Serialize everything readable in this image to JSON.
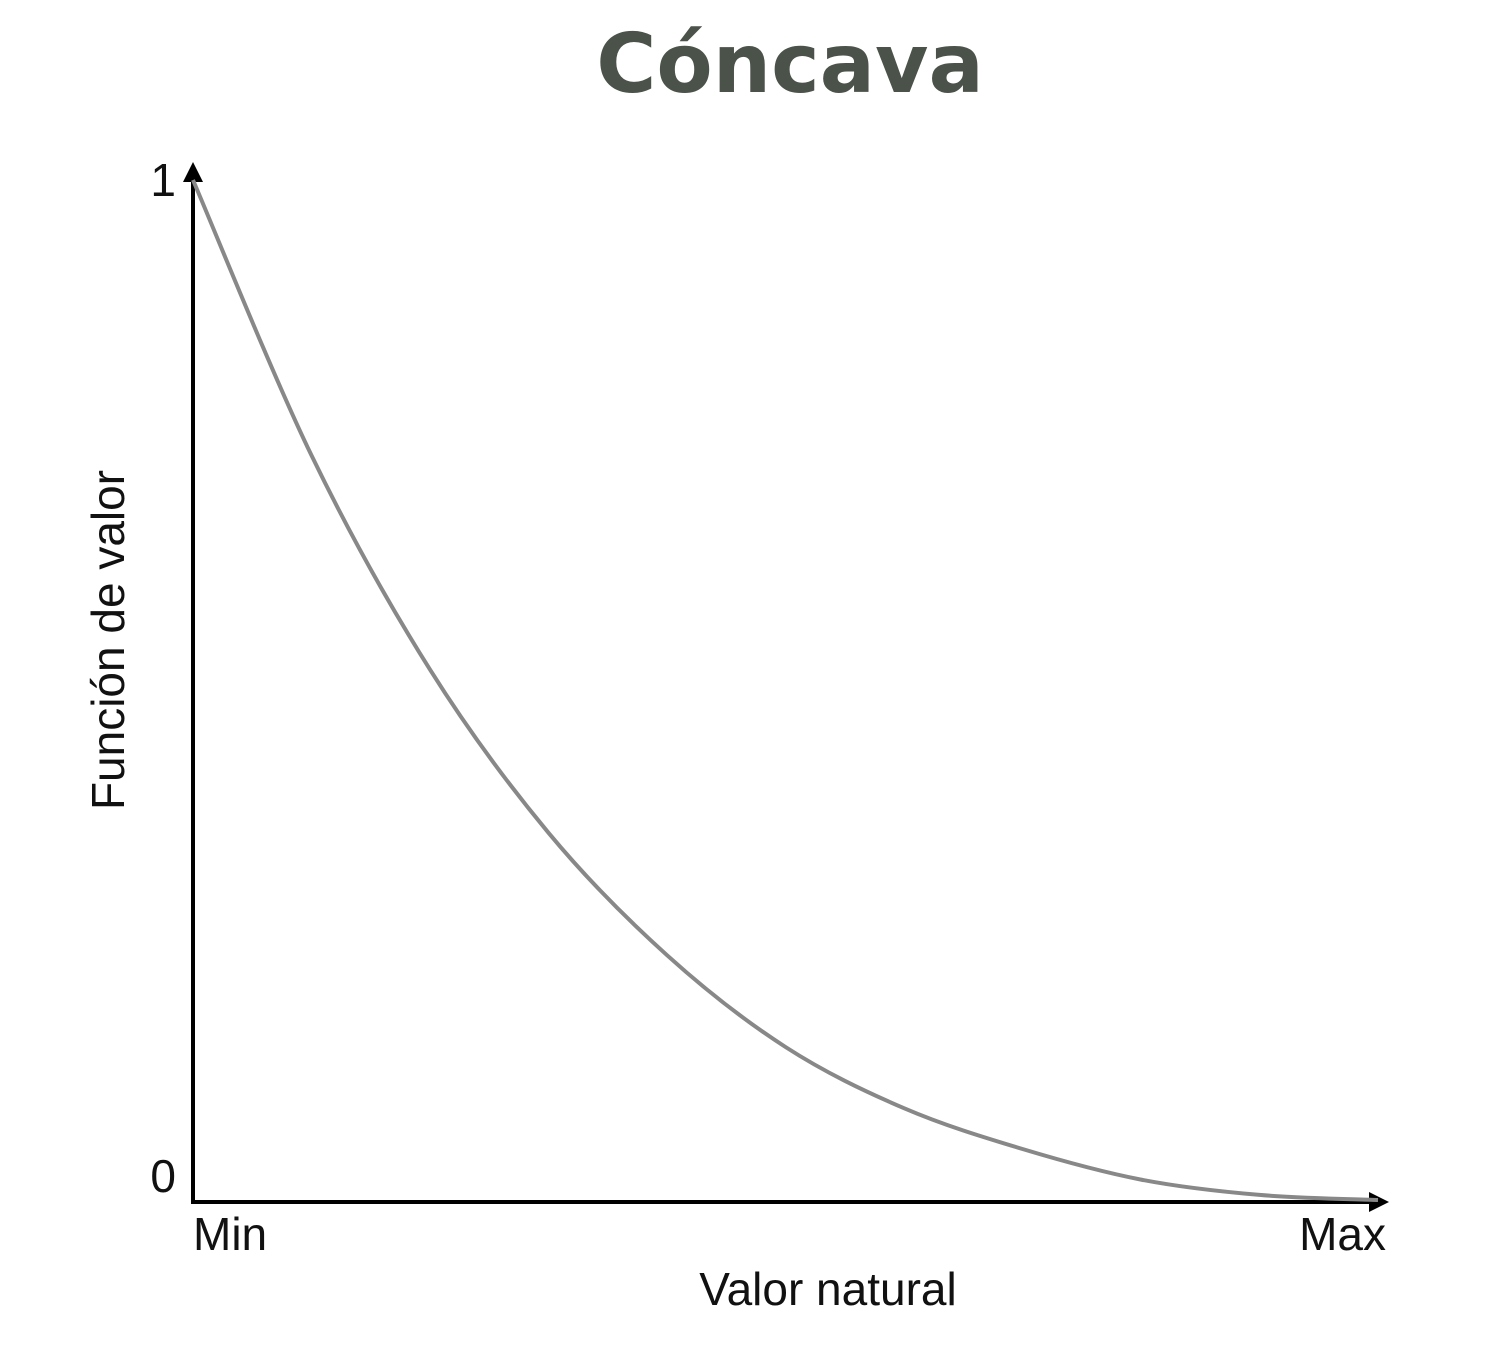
{
  "chart_data": {
    "type": "line",
    "title": "Cóncava",
    "xlabel": "Valor natural",
    "ylabel": "Función de valor",
    "x_tick_labels": [
      "Min",
      "Max"
    ],
    "y_tick_labels": [
      "0",
      "1"
    ],
    "xlim": [
      0,
      1
    ],
    "ylim": [
      0,
      1
    ],
    "grid": false,
    "series": [
      {
        "x": [
          0,
          0.1,
          0.2,
          0.3,
          0.4,
          0.5,
          0.6,
          0.7,
          0.8,
          0.9,
          1.0
        ],
        "values": [
          1.0,
          0.73,
          0.52,
          0.36,
          0.24,
          0.15,
          0.09,
          0.05,
          0.02,
          0.005,
          0.0
        ]
      }
    ]
  },
  "colors": {
    "title": "#4a5249",
    "curve": "#888888",
    "axis": "#000000"
  }
}
